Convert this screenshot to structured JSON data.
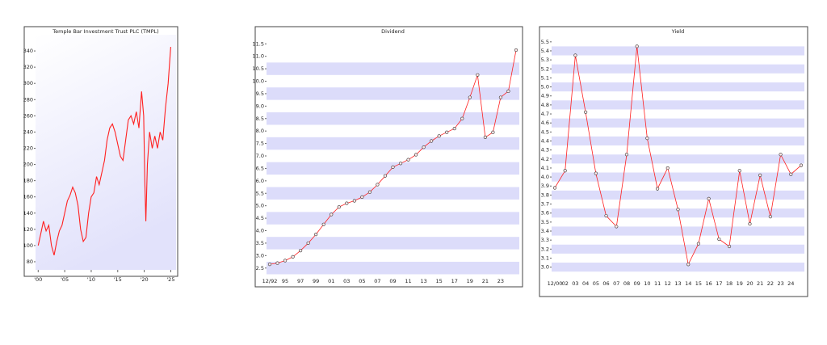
{
  "chart_data": [
    {
      "type": "line",
      "title": "Temple Bar Investment Trust PLC (TMPL)",
      "color": "#ff2020",
      "background": "gradient",
      "markers": false,
      "x": [
        2000,
        2000.5,
        2001,
        2001.5,
        2002,
        2002.5,
        2003,
        2003.5,
        2004,
        2004.5,
        2005,
        2005.5,
        2006,
        2006.5,
        2007,
        2007.5,
        2008,
        2008.5,
        2009,
        2009.5,
        2010,
        2010.5,
        2011,
        2011.5,
        2012,
        2012.5,
        2013,
        2013.5,
        2014,
        2014.5,
        2015,
        2015.5,
        2016,
        2016.5,
        2017,
        2017.5,
        2018,
        2018.5,
        2019,
        2019.5,
        2019.9,
        2020.1,
        2020.3,
        2020.6,
        2021,
        2021.5,
        2022,
        2022.5,
        2023,
        2023.5,
        2024,
        2024.5,
        2025
      ],
      "values": [
        100,
        115,
        130,
        118,
        125,
        100,
        88,
        105,
        118,
        125,
        140,
        155,
        162,
        172,
        165,
        150,
        120,
        105,
        110,
        140,
        160,
        165,
        185,
        175,
        190,
        205,
        230,
        245,
        250,
        240,
        225,
        210,
        205,
        230,
        255,
        260,
        250,
        265,
        245,
        290,
        260,
        180,
        130,
        200,
        240,
        220,
        235,
        220,
        240,
        230,
        270,
        300,
        345
      ],
      "xlim": [
        1999.5,
        2026
      ],
      "ylim": [
        70,
        360
      ],
      "xticks": [
        {
          "value": 2000,
          "label": "'00"
        },
        {
          "value": 2005,
          "label": "'05"
        },
        {
          "value": 2010,
          "label": "'10"
        },
        {
          "value": 2015,
          "label": "'15"
        },
        {
          "value": 2020,
          "label": "'20"
        },
        {
          "value": 2025,
          "label": "'25"
        }
      ],
      "yticks": [
        80,
        100,
        120,
        140,
        160,
        180,
        200,
        220,
        240,
        260,
        280,
        300,
        320,
        340
      ]
    },
    {
      "type": "line",
      "title": "Dividend",
      "color": "#ff2020",
      "grid": "bands",
      "markers": true,
      "categories": [
        "12/92",
        null,
        "95",
        null,
        "97",
        null,
        "99",
        null,
        "01",
        null,
        "03",
        null,
        "05",
        null,
        "07",
        null,
        "09",
        null,
        "11",
        null,
        "13",
        null,
        "15",
        null,
        "17",
        null,
        "19",
        null,
        "21",
        null,
        "23",
        null,
        null
      ],
      "values": [
        2.65,
        2.7,
        2.8,
        2.95,
        3.2,
        3.5,
        3.85,
        4.25,
        4.65,
        4.95,
        5.1,
        5.2,
        5.35,
        5.55,
        5.85,
        6.2,
        6.55,
        6.7,
        6.85,
        7.05,
        7.35,
        7.6,
        7.8,
        7.95,
        8.1,
        8.5,
        9.35,
        10.25,
        7.75,
        7.95,
        9.35,
        9.6,
        11.25
      ],
      "ylim": [
        2.2,
        11.8
      ],
      "yticks": [
        2.5,
        {
          "value": 3,
          "label": "3.0"
        },
        3.5,
        {
          "value": 4,
          "label": "4.0"
        },
        4.5,
        {
          "value": 5,
          "label": "5.0"
        },
        5.5,
        {
          "value": 6,
          "label": "6.0"
        },
        6.5,
        {
          "value": 7,
          "label": "7.0"
        },
        7.5,
        {
          "value": 8,
          "label": "8.0"
        },
        8.5,
        {
          "value": 9,
          "label": "9.0"
        },
        9.5,
        {
          "value": 10,
          "label": "10.0"
        },
        10.5,
        {
          "value": 11,
          "label": "11.0"
        },
        11.5
      ]
    },
    {
      "type": "line",
      "title": "Yield",
      "color": "#ff2020",
      "grid": "bands",
      "markers": true,
      "categories": [
        "12/00",
        "02",
        "03",
        "04",
        "05",
        "06",
        "07",
        "08",
        "09",
        "10",
        "11",
        "12",
        "13",
        "14",
        "15",
        "16",
        "17",
        "18",
        "19",
        "20",
        "21",
        "22",
        "23",
        "24",
        null
      ],
      "values": [
        3.88,
        4.07,
        5.35,
        4.72,
        4.04,
        3.57,
        3.45,
        4.25,
        5.45,
        4.43,
        3.87,
        4.1,
        3.64,
        3.03,
        3.26,
        3.76,
        3.31,
        3.23,
        4.07,
        3.48,
        4.02,
        3.56,
        4.25,
        4.03,
        4.13
      ],
      "ylim": [
        2.88,
        5.57
      ],
      "yticks": [
        {
          "value": 3,
          "label": "3.0"
        },
        3.1,
        3.2,
        3.3,
        3.4,
        3.5,
        3.6,
        3.7,
        3.8,
        3.9,
        {
          "value": 4,
          "label": "4.0"
        },
        4.1,
        4.2,
        4.3,
        4.4,
        4.5,
        4.6,
        4.7,
        4.8,
        4.9,
        {
          "value": 5,
          "label": "5.0"
        },
        5.1,
        5.2,
        5.3,
        5.4,
        5.5
      ]
    }
  ]
}
